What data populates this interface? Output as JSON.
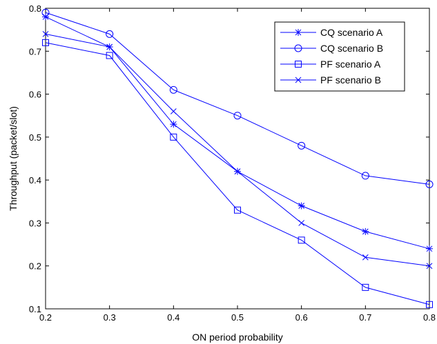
{
  "chart_data": {
    "type": "line",
    "xlabel": "ON period probability",
    "ylabel": "Throughput (packet/slot)",
    "xlim": [
      0.2,
      0.8
    ],
    "ylim": [
      0.1,
      0.8
    ],
    "x": [
      0.2,
      0.3,
      0.4,
      0.5,
      0.6,
      0.7,
      0.8
    ],
    "x_ticks": [
      "0.2",
      "0.3",
      "0.4",
      "0.5",
      "0.6",
      "0.7",
      "0.8"
    ],
    "y_ticks": [
      "0.1",
      "0.2",
      "0.3",
      "0.4",
      "0.5",
      "0.6",
      "0.7",
      "0.8"
    ],
    "grid": false,
    "legend_position": "top-right",
    "line_color": "#0000ff",
    "series": [
      {
        "name": "CQ scenario A",
        "marker": "star",
        "values": [
          0.78,
          0.71,
          0.53,
          0.42,
          0.34,
          0.28,
          0.24
        ]
      },
      {
        "name": "CQ scenario B",
        "marker": "circle",
        "values": [
          0.79,
          0.74,
          0.61,
          0.55,
          0.48,
          0.41,
          0.39
        ]
      },
      {
        "name": "PF scenario A",
        "marker": "square",
        "values": [
          0.72,
          0.69,
          0.5,
          0.33,
          0.26,
          0.15,
          0.11
        ]
      },
      {
        "name": "PF scenario B",
        "marker": "x",
        "values": [
          0.74,
          0.71,
          0.56,
          0.42,
          0.3,
          0.22,
          0.2
        ]
      }
    ]
  }
}
